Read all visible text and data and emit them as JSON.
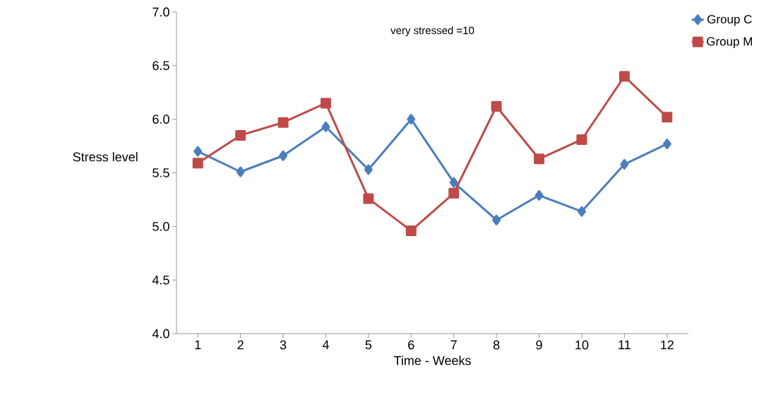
{
  "chart_data": {
    "type": "line",
    "xlabel": "Time - Weeks",
    "ylabel": "Stress level",
    "annotations": [
      "very stressed =10"
    ],
    "categories": [
      "1",
      "2",
      "3",
      "4",
      "5",
      "6",
      "7",
      "8",
      "9",
      "10",
      "11",
      "12"
    ],
    "series": [
      {
        "name": "Group C",
        "color": "#4a7ebb",
        "marker": "diamond",
        "values": [
          5.7,
          5.51,
          5.66,
          5.93,
          5.53,
          6.0,
          5.41,
          5.06,
          5.29,
          5.14,
          5.58,
          5.77
        ]
      },
      {
        "name": "Group M",
        "color": "#be4b48",
        "marker": "square",
        "values": [
          5.59,
          5.85,
          5.97,
          6.15,
          5.26,
          4.96,
          5.31,
          6.12,
          5.63,
          5.81,
          6.4,
          6.02
        ]
      }
    ],
    "ylim": [
      4.0,
      7.0
    ],
    "yticks": [
      {
        "value": 4.0,
        "label": "4.0"
      },
      {
        "value": 4.5,
        "label": "4.5"
      },
      {
        "value": 5.0,
        "label": "5.0"
      },
      {
        "value": 5.5,
        "label": "5.5"
      },
      {
        "value": 6.0,
        "label": "6.0"
      },
      {
        "value": 6.5,
        "label": "6.5"
      },
      {
        "value": 7.0,
        "label": "7.0"
      }
    ],
    "legend": "top right",
    "grid": false,
    "line_style": "solid"
  }
}
